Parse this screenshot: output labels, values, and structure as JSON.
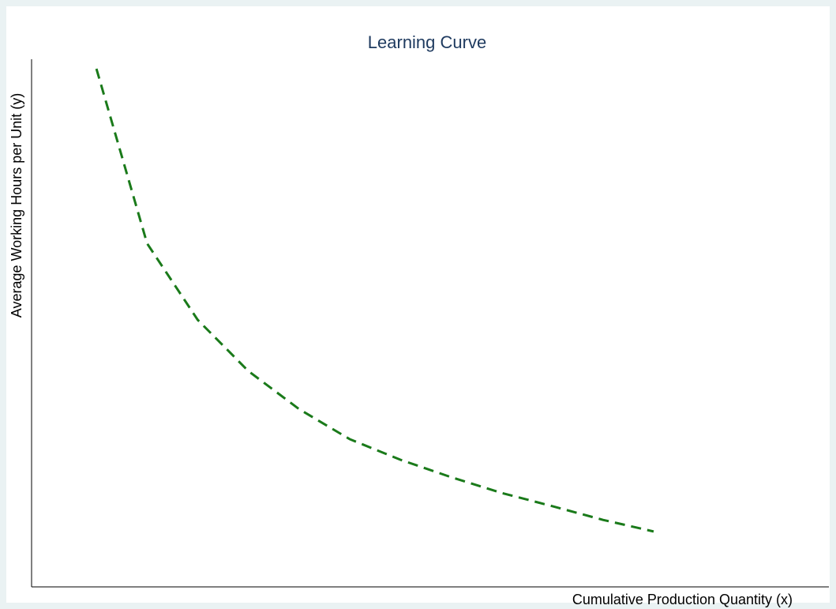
{
  "chart_data": {
    "type": "line",
    "title": "Learning Curve",
    "x_label": "Cumulative Production Quantity (x)",
    "y_label": "Average Working Hours per Unit (y)",
    "x": [
      1,
      2,
      3,
      4,
      5,
      6,
      7,
      8,
      9,
      10,
      11,
      12
    ],
    "series": [
      {
        "color": "#1a7a1a",
        "values": [
          98.2,
          65.1,
          50.6,
          40.9,
          33.7,
          28.0,
          24.1,
          20.8,
          17.8,
          15.3,
          12.7,
          10.5
        ]
      }
    ],
    "xlim": [
      -0.28,
      15.46
    ],
    "ylim": [
      0,
      100
    ]
  }
}
